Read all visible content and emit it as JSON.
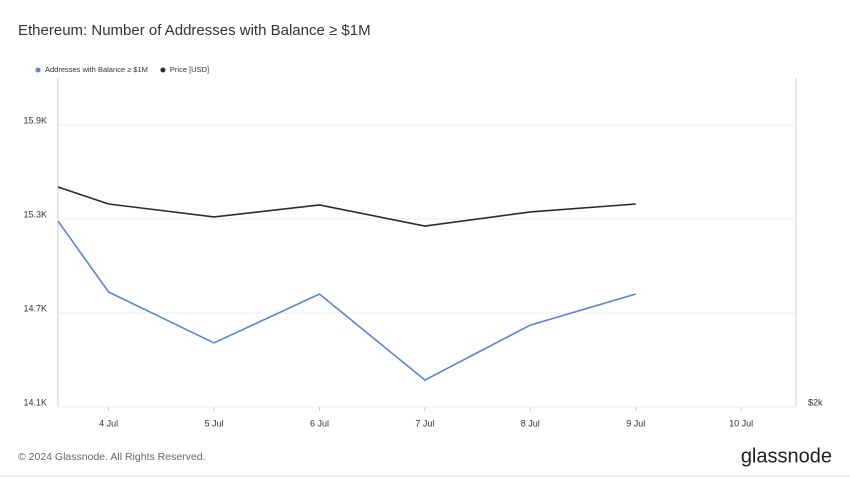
{
  "chart_data": {
    "type": "line",
    "title": "Ethereum: Number of Addresses with Balance ≥ $1M",
    "x": [
      3.52,
      4,
      5,
      6,
      7,
      8,
      9
    ],
    "xlim": [
      3.52,
      10.52
    ],
    "xticks": [
      {
        "value": 4,
        "label": "4 Jul"
      },
      {
        "value": 5,
        "label": "5 Jul"
      },
      {
        "value": 6,
        "label": "6 Jul"
      },
      {
        "value": 7,
        "label": "7 Jul"
      },
      {
        "value": 8,
        "label": "8 Jul"
      },
      {
        "value": 9,
        "label": "9 Jul"
      },
      {
        "value": 10,
        "label": "10 Jul"
      }
    ],
    "ylim": [
      14100,
      16200
    ],
    "yticks": [
      {
        "value": 14100,
        "label": "14.1K"
      },
      {
        "value": 14700,
        "label": "14.7K"
      },
      {
        "value": 15300,
        "label": "15.3K"
      },
      {
        "value": 15900,
        "label": "15.9K"
      }
    ],
    "y2lim": [
      2000,
      3700
    ],
    "y2ticks": [
      {
        "value": 2000,
        "label": "$2k"
      }
    ],
    "grid": true,
    "series": [
      {
        "name": "Addresses with Balance ≥ $1M",
        "color": "#5b80de",
        "values": [
          15287,
          14834,
          14509,
          14821,
          14272,
          14623,
          14821
        ]
      },
      {
        "name": "Price [USD]",
        "color": "#2b2b2b",
        "axis": "y2",
        "values": [
          3137,
          3049,
          2982,
          3044,
          2935,
          3008,
          3049
        ]
      }
    ],
    "footer": "© 2024 Glassnode. All Rights Reserved.",
    "logo": "glassnode"
  }
}
